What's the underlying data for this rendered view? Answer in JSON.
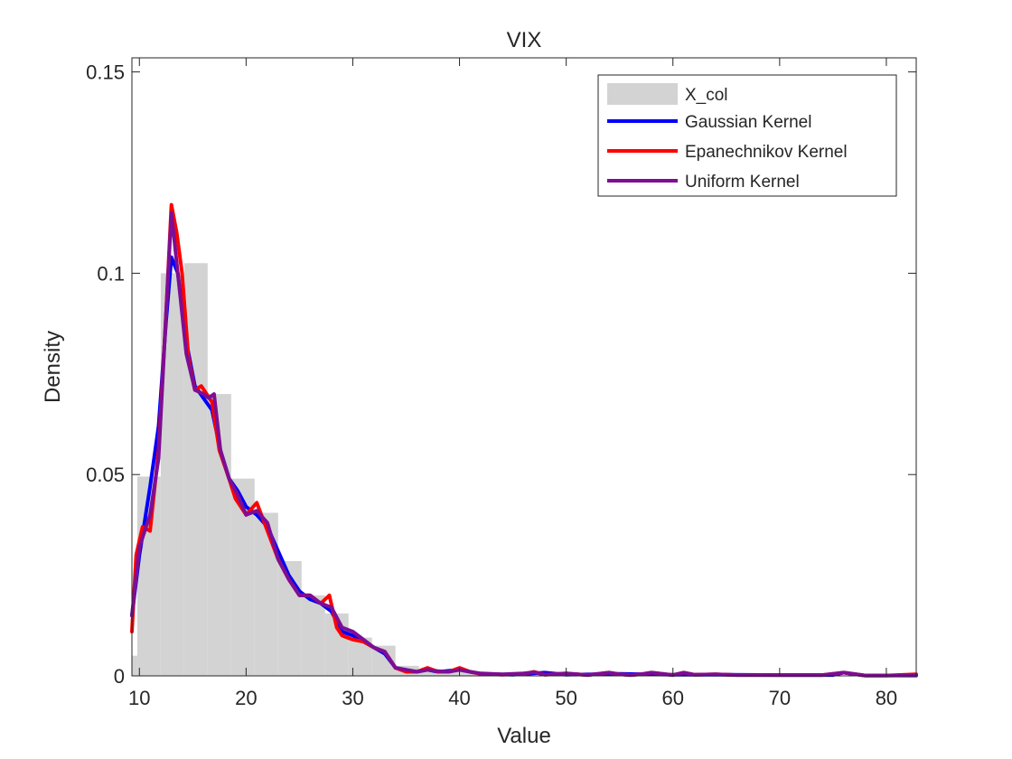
{
  "chart_data": {
    "type": "histogram",
    "title": "VIX",
    "xlabel": "Value",
    "ylabel": "Density",
    "xlim": [
      9.3,
      82.8
    ],
    "ylim": [
      0,
      0.1535
    ],
    "xticks": [
      10,
      20,
      30,
      40,
      50,
      60,
      70,
      80
    ],
    "yticks": [
      0,
      0.05,
      0.1,
      0.15
    ],
    "ytick_labels": [
      "0",
      "0.05",
      "0.1",
      "0.15"
    ],
    "grid": false,
    "legend_position": "top-right",
    "histogram": {
      "name": "X_col",
      "color": "#d3d3d3",
      "bins": [
        {
          "x0": 9.3,
          "x1": 9.8,
          "density": 0.005
        },
        {
          "x0": 9.8,
          "x1": 12.0,
          "density": 0.0495
        },
        {
          "x0": 12.0,
          "x1": 14.2,
          "density": 0.1
        },
        {
          "x0": 14.2,
          "x1": 16.4,
          "density": 0.1025
        },
        {
          "x0": 16.4,
          "x1": 18.6,
          "density": 0.07
        },
        {
          "x0": 18.6,
          "x1": 20.8,
          "density": 0.049
        },
        {
          "x0": 20.8,
          "x1": 23.0,
          "density": 0.0405
        },
        {
          "x0": 23.0,
          "x1": 25.2,
          "density": 0.0285
        },
        {
          "x0": 25.2,
          "x1": 27.4,
          "density": 0.02
        },
        {
          "x0": 27.4,
          "x1": 29.6,
          "density": 0.0155
        },
        {
          "x0": 29.6,
          "x1": 31.8,
          "density": 0.0095
        },
        {
          "x0": 31.8,
          "x1": 34.0,
          "density": 0.0075
        },
        {
          "x0": 34.0,
          "x1": 36.2,
          "density": 0.0025
        },
        {
          "x0": 36.2,
          "x1": 38.4,
          "density": 0.0015
        },
        {
          "x0": 38.4,
          "x1": 40.6,
          "density": 0.001
        },
        {
          "x0": 40.6,
          "x1": 42.8,
          "density": 0.0008
        }
      ]
    },
    "series": [
      {
        "name": "Gaussian Kernel",
        "color": "#0000ff",
        "x": [
          9.3,
          10,
          11,
          11.8,
          12.5,
          13,
          13.6,
          14.4,
          15.2,
          16,
          16.8,
          17.6,
          18.4,
          19.2,
          20,
          21,
          22,
          23,
          24,
          25,
          26,
          27,
          28,
          29,
          30,
          31,
          32,
          33,
          34,
          35,
          36,
          37,
          38,
          40,
          42,
          45,
          48,
          50,
          55,
          60,
          65,
          70,
          75,
          76,
          78,
          82.8
        ],
        "y": [
          0.015,
          0.03,
          0.047,
          0.062,
          0.088,
          0.104,
          0.1,
          0.083,
          0.072,
          0.069,
          0.066,
          0.056,
          0.049,
          0.046,
          0.042,
          0.04,
          0.037,
          0.031,
          0.025,
          0.021,
          0.019,
          0.018,
          0.016,
          0.011,
          0.01,
          0.0085,
          0.007,
          0.0055,
          0.002,
          0.0015,
          0.001,
          0.0015,
          0.001,
          0.0015,
          0.0005,
          0.0003,
          0.0008,
          0.0003,
          0.0005,
          0.0003,
          0.0003,
          0.0002,
          0.0002,
          0.0008,
          0.0001,
          0.0001
        ]
      },
      {
        "name": "Epanechnikov Kernel",
        "color": "#ff0000",
        "x": [
          9.3,
          9.7,
          10.3,
          11,
          11.8,
          12.5,
          13,
          13.5,
          14,
          14.6,
          15.2,
          15.8,
          16.3,
          16.8,
          17.5,
          18.4,
          19,
          20,
          21,
          22,
          23,
          24,
          25,
          26,
          27,
          27.8,
          28.5,
          29,
          30,
          31,
          32,
          33,
          34,
          35,
          36,
          37,
          38,
          39,
          40,
          41,
          42,
          44,
          46,
          47,
          48,
          50,
          52,
          54,
          55,
          56,
          57,
          58,
          60,
          61,
          62,
          64,
          66,
          68,
          70,
          72,
          74,
          76,
          78,
          80,
          82.8
        ],
        "y": [
          0.011,
          0.03,
          0.037,
          0.036,
          0.056,
          0.09,
          0.117,
          0.11,
          0.1,
          0.079,
          0.071,
          0.072,
          0.07,
          0.068,
          0.056,
          0.049,
          0.044,
          0.04,
          0.043,
          0.036,
          0.029,
          0.024,
          0.02,
          0.02,
          0.018,
          0.02,
          0.012,
          0.01,
          0.009,
          0.0085,
          0.007,
          0.006,
          0.002,
          0.001,
          0.001,
          0.002,
          0.001,
          0.001,
          0.002,
          0.001,
          0.0005,
          0.0003,
          0.0005,
          0.001,
          0.0003,
          0.0006,
          0.0002,
          0.0008,
          0.0004,
          0.0002,
          0.0004,
          0.0008,
          0.0002,
          0.0008,
          0.0003,
          0.0004,
          0.0002,
          0.0002,
          0.0002,
          0.0002,
          0.0002,
          0.0008,
          0.0001,
          0.0001,
          0.0004
        ]
      },
      {
        "name": "Uniform Kernel",
        "color": "#7e0e93",
        "x": [
          9.3,
          10,
          11,
          11.8,
          12.5,
          13,
          13.6,
          14.4,
          15.2,
          16,
          16.5,
          17,
          17.6,
          18.4,
          19.2,
          20,
          21,
          22,
          23,
          24,
          25,
          26,
          27,
          28,
          29,
          30,
          31,
          32,
          33,
          34,
          35,
          36,
          37,
          38,
          39,
          40,
          41,
          42,
          44,
          46,
          47,
          48,
          50,
          52,
          54,
          55,
          56,
          57,
          58,
          60,
          61,
          62,
          64,
          66,
          68,
          70,
          72,
          74,
          76,
          78,
          80,
          82.8
        ],
        "y": [
          0.015,
          0.032,
          0.04,
          0.054,
          0.09,
          0.115,
          0.1,
          0.08,
          0.071,
          0.07,
          0.069,
          0.07,
          0.056,
          0.049,
          0.045,
          0.04,
          0.041,
          0.038,
          0.029,
          0.024,
          0.02,
          0.02,
          0.018,
          0.017,
          0.012,
          0.011,
          0.009,
          0.007,
          0.006,
          0.002,
          0.0015,
          0.001,
          0.0015,
          0.0012,
          0.001,
          0.0015,
          0.001,
          0.0006,
          0.0004,
          0.0006,
          0.0009,
          0.0003,
          0.0006,
          0.0002,
          0.0008,
          0.0004,
          0.0002,
          0.0004,
          0.0008,
          0.0002,
          0.0008,
          0.0003,
          0.0004,
          0.0002,
          0.0002,
          0.0002,
          0.0002,
          0.0002,
          0.0008,
          0.0001,
          0.0001,
          0.0002
        ]
      }
    ]
  }
}
